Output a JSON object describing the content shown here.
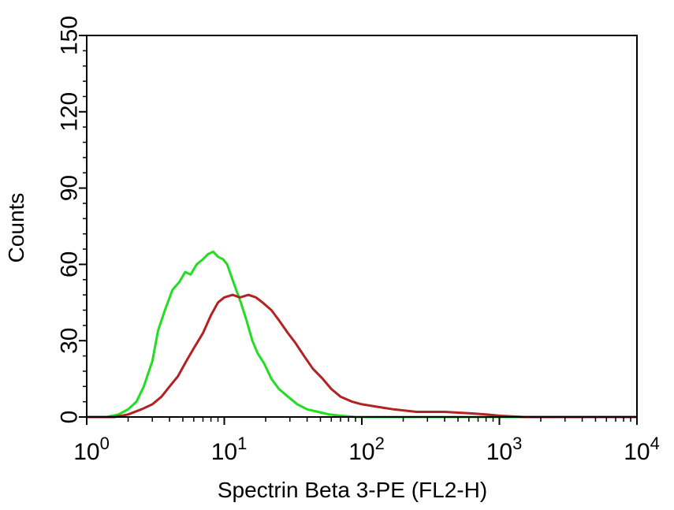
{
  "chart_data": {
    "type": "line",
    "xlabel": "Spectrin Beta 3-PE (FL2-H)",
    "ylabel": "Counts",
    "xscale": "log",
    "xlim": [
      1,
      10000
    ],
    "ylim": [
      0,
      150
    ],
    "x_ticks": [
      {
        "base": "10",
        "exp": "0",
        "value": 1
      },
      {
        "base": "10",
        "exp": "1",
        "value": 10
      },
      {
        "base": "10",
        "exp": "2",
        "value": 100
      },
      {
        "base": "10",
        "exp": "3",
        "value": 1000
      },
      {
        "base": "10",
        "exp": "4",
        "value": 10000
      }
    ],
    "y_ticks": [
      "0",
      "30",
      "60",
      "90",
      "120",
      "150"
    ],
    "grid": false,
    "series": [
      {
        "color": "#22dd22",
        "x": [
          1,
          1.4,
          1.7,
          2.0,
          2.3,
          2.6,
          3.0,
          3.3,
          3.7,
          4.2,
          4.7,
          5.2,
          5.7,
          6.3,
          7.0,
          7.6,
          8.3,
          9.0,
          9.8,
          10.5,
          11.3,
          12.2,
          13.2,
          14.5,
          16,
          17.5,
          19.5,
          22,
          25,
          29,
          34,
          40,
          48,
          58,
          70,
          90,
          150,
          10000
        ],
        "y": [
          0,
          0,
          1,
          3,
          6,
          12,
          22,
          34,
          42,
          50,
          53,
          57,
          56,
          60,
          62,
          64,
          65,
          63,
          62,
          60,
          55,
          50,
          45,
          38,
          30,
          25,
          21,
          15,
          11,
          8,
          5,
          3,
          2,
          1,
          0.5,
          0,
          0,
          0
        ]
      },
      {
        "color": "#b22222",
        "x": [
          1,
          1.6,
          2.0,
          2.5,
          3.0,
          3.5,
          4.0,
          4.6,
          5.3,
          6.0,
          7.0,
          8.0,
          9.0,
          10,
          11.5,
          13,
          15,
          17,
          19,
          22,
          25,
          29,
          33,
          38,
          44,
          52,
          60,
          70,
          85,
          100,
          130,
          170,
          250,
          400,
          600,
          800,
          1000,
          1500,
          10000
        ],
        "y": [
          0,
          0,
          1,
          3,
          5,
          8,
          12,
          16,
          22,
          27,
          33,
          40,
          45,
          47,
          48,
          47,
          48,
          47,
          45,
          42,
          38,
          33,
          29,
          24,
          19,
          15,
          11,
          8,
          6,
          5,
          4,
          3,
          2,
          2,
          1.5,
          1,
          0.5,
          0,
          0
        ]
      }
    ]
  }
}
